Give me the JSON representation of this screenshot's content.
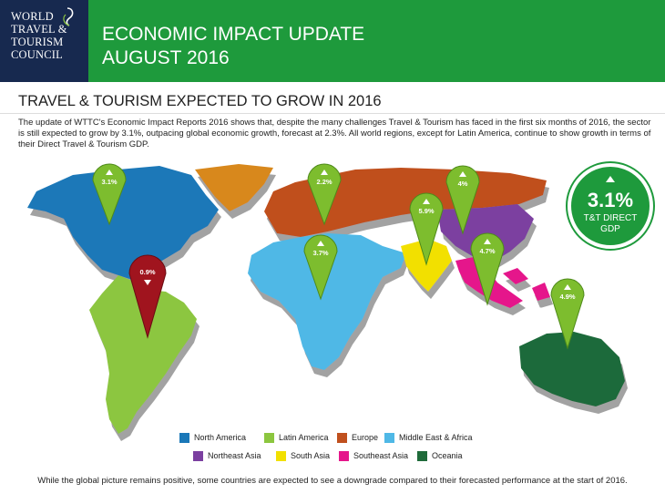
{
  "logo": {
    "lines": [
      "WORLD",
      "TRAVEL &",
      "TOURISM",
      "COUNCIL"
    ]
  },
  "header": {
    "title_line1": "ECONOMIC IMPACT UPDATE",
    "title_line2": "AUGUST 2016"
  },
  "section_title": "TRAVEL & TOURISM EXPECTED TO GROW IN 2016",
  "intro": "The update of WTTC's Economic Impact Reports 2016 shows that, despite the many challenges Travel & Tourism has faced in the first six months of 2016, the sector is still expected to grow by 3.1%, outpacing global economic growth, forecast at 2.3%.  All world regions, except for Latin America, continue to show growth in terms of their Direct Travel & Tourism GDP.",
  "pins": [
    {
      "value": "3.1%",
      "region": "North America",
      "direction": "up",
      "color": "#7dbd2e"
    },
    {
      "value": "0.9%",
      "region": "Latin America",
      "direction": "down",
      "color": "#a0141e"
    },
    {
      "value": "2.2%",
      "region": "Europe",
      "direction": "up",
      "color": "#7dbd2e"
    },
    {
      "value": "3.7%",
      "region": "Middle East & Africa",
      "direction": "up",
      "color": "#7dbd2e"
    },
    {
      "value": "5.9%",
      "region": "South Asia",
      "direction": "up",
      "color": "#7dbd2e"
    },
    {
      "value": "4%",
      "region": "Northeast Asia",
      "direction": "up",
      "color": "#7dbd2e"
    },
    {
      "value": "4.7%",
      "region": "Southeast Asia",
      "direction": "up",
      "color": "#7dbd2e"
    },
    {
      "value": "4.9%",
      "region": "Oceania",
      "direction": "up",
      "color": "#7dbd2e"
    }
  ],
  "global_badge": {
    "value": "3.1%",
    "label_line1": "T&T DIRECT",
    "label_line2": "GDP",
    "color": "#1e9a3c"
  },
  "legend": [
    {
      "label": "North America",
      "color": "#1a78b8"
    },
    {
      "label": "Latin America",
      "color": "#8cc63f"
    },
    {
      "label": "Europe",
      "color": "#c0501e"
    },
    {
      "label": "Middle East & Africa",
      "color": "#4fb8e6"
    },
    {
      "label": "Northeast Asia",
      "color": "#7b3fa0"
    },
    {
      "label": "South Asia",
      "color": "#f2e000"
    },
    {
      "label": "Southeast Asia",
      "color": "#e5168b"
    },
    {
      "label": "Oceania",
      "color": "#1f6b3a"
    }
  ],
  "region_colors": {
    "north_america": "#1a78b8",
    "greenland": "#d8881e",
    "latin_america": "#8cc63f",
    "europe_russia": "#c0501e",
    "middle_east_africa": "#4fb8e6",
    "northeast_asia": "#7b3fa0",
    "south_asia": "#f2e000",
    "southeast_asia": "#e5168b",
    "oceania": "#1f6b3a"
  },
  "footer": "While the global picture remains positive, some countries are expected to see a downgrade compared to their forecasted performance at the start of 2016."
}
